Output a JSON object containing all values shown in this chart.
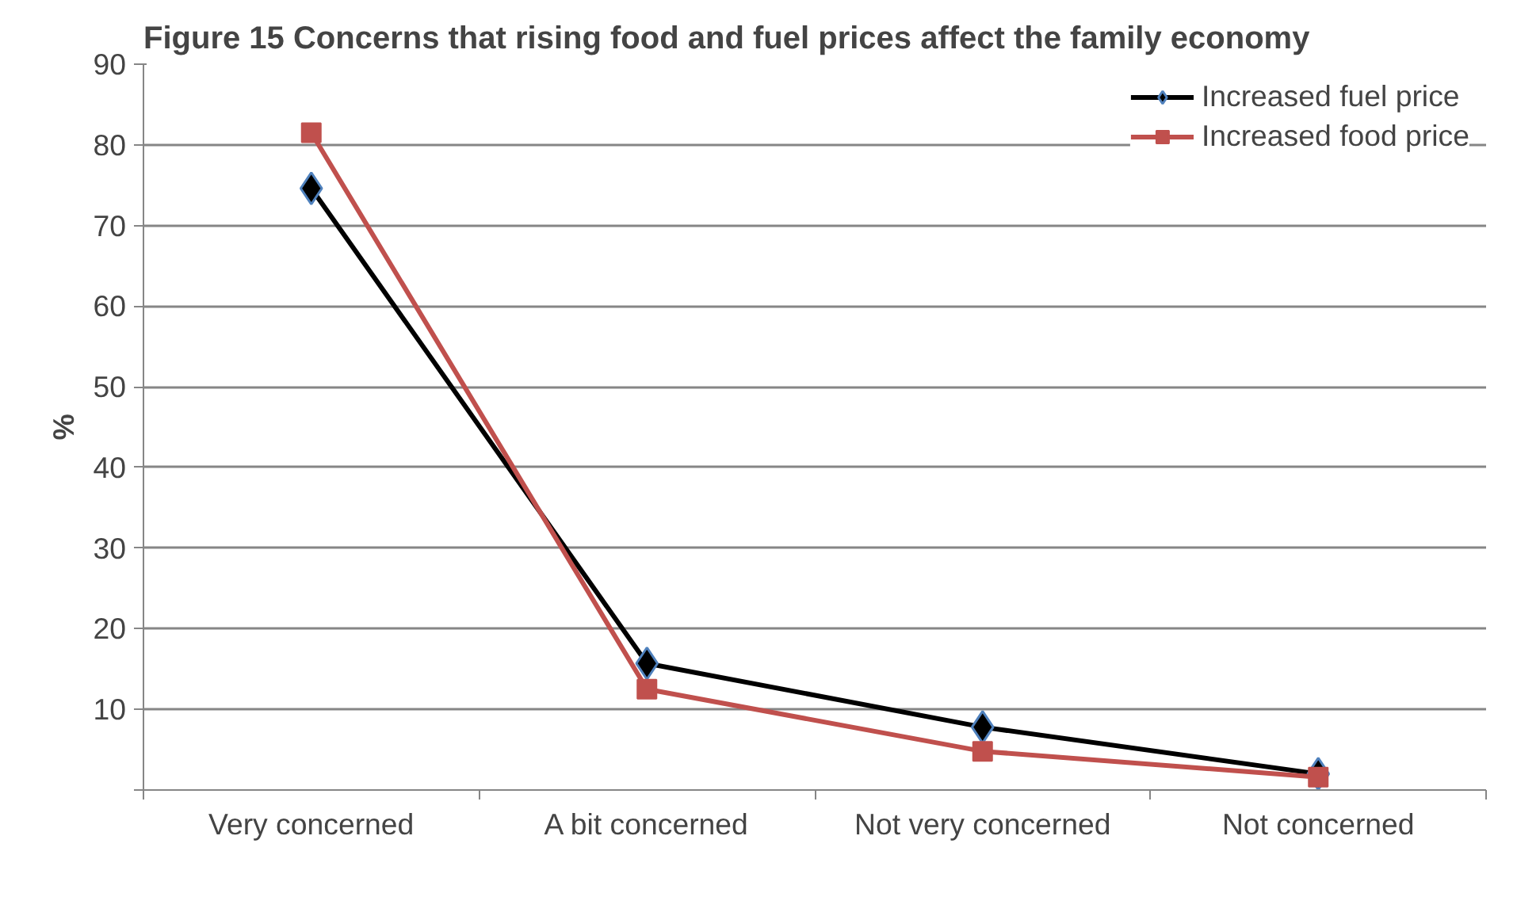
{
  "chart_data": {
    "type": "line",
    "title": "Figure 15 Concerns that rising food and fuel prices affect the family economy",
    "ylabel": "%",
    "categories": [
      "Very concerned",
      "A bit concerned",
      "Not very concerned",
      "Not concerned"
    ],
    "series": [
      {
        "name": "Increased fuel price",
        "color": "#000000",
        "marker": "diamond",
        "values": [
          74.6,
          15.7,
          7.8,
          2.0
        ]
      },
      {
        "name": "Increased food price",
        "color": "#c0504d",
        "marker": "square",
        "values": [
          81.5,
          12.5,
          4.8,
          1.6
        ]
      }
    ],
    "ylim": [
      0,
      90
    ],
    "yticks": [
      {
        "value": 0,
        "label": null
      },
      10,
      20,
      30,
      40,
      50,
      60,
      70,
      80,
      90
    ],
    "grid": "y",
    "legend": "top right"
  }
}
